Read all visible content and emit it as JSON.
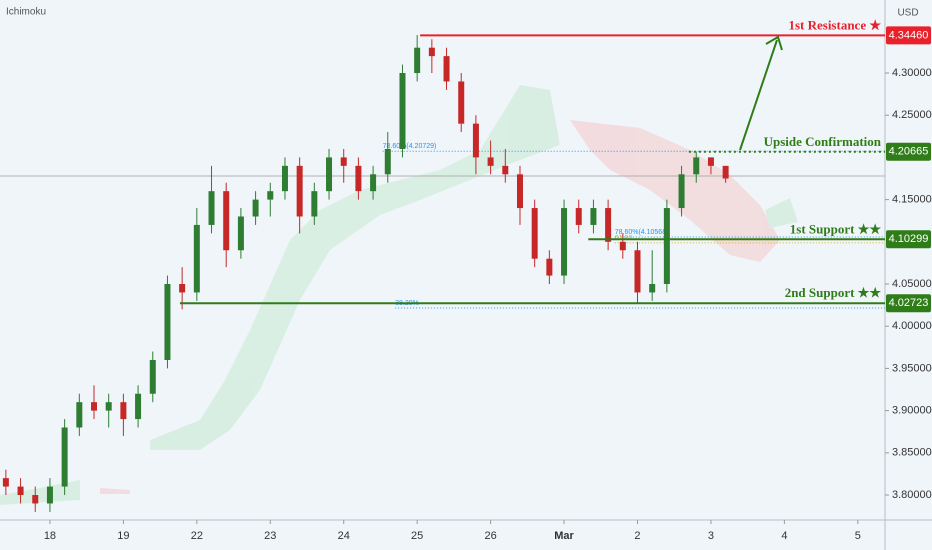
{
  "chart_data": {
    "type": "candlestick",
    "indicator": "Ichimoku",
    "currency": "USD",
    "xlim": [
      -0.68,
      11.37
    ],
    "ylim": [
      3.7704,
      4.3865
    ],
    "xticks": [
      {
        "value": 0,
        "label": "18"
      },
      {
        "value": 1,
        "label": "19"
      },
      {
        "value": 2,
        "label": "22"
      },
      {
        "value": 3,
        "label": "23"
      },
      {
        "value": 4,
        "label": "24"
      },
      {
        "value": 5,
        "label": "25"
      },
      {
        "value": 6,
        "label": "26"
      },
      {
        "value": 7,
        "label": "Mar"
      },
      {
        "value": 8,
        "label": "2"
      },
      {
        "value": 9,
        "label": "3"
      },
      {
        "value": 10,
        "label": "4"
      },
      {
        "value": 11,
        "label": "5"
      }
    ],
    "yticks": [
      {
        "value": 3.8,
        "label": "3.80000"
      },
      {
        "value": 3.85,
        "label": "3.85000"
      },
      {
        "value": 3.9,
        "label": "3.90000"
      },
      {
        "value": 3.95,
        "label": "3.95000"
      },
      {
        "value": 4,
        "label": "4.00000"
      },
      {
        "value": 4.05,
        "label": "4.05000"
      },
      {
        "value": 4.15,
        "label": "4.15000"
      },
      {
        "value": 4.25,
        "label": "4.25000"
      },
      {
        "value": 4.3,
        "label": "4.30000"
      }
    ],
    "up_color": "#2e7d32",
    "down_color": "#c62828",
    "candles": {
      "x": [
        -0.6,
        -0.4,
        -0.2,
        0,
        0.2,
        0.4,
        0.6,
        0.8,
        1,
        1.2,
        1.4,
        1.6,
        1.8,
        2,
        2.2,
        2.4,
        2.6,
        2.8,
        3,
        3.2,
        3.4,
        3.6,
        3.8,
        4,
        4.2,
        4.4,
        4.6,
        4.8,
        5,
        5.2,
        5.4,
        5.6,
        5.8,
        6,
        6.2,
        6.4,
        6.6,
        6.8,
        7,
        7.2,
        7.4,
        7.6,
        7.8,
        8,
        8.2,
        8.4,
        8.6,
        8.8,
        9,
        9.2
      ],
      "open": [
        3.82,
        3.81,
        3.8,
        3.79,
        3.81,
        3.88,
        3.91,
        3.9,
        3.91,
        3.89,
        3.92,
        3.96,
        4.05,
        4.04,
        4.12,
        4.16,
        4.09,
        4.13,
        4.15,
        4.16,
        4.19,
        4.13,
        4.16,
        4.2,
        4.19,
        4.16,
        4.18,
        4.21,
        4.3,
        4.33,
        4.32,
        4.29,
        4.24,
        4.2,
        4.19,
        4.18,
        4.14,
        4.08,
        4.06,
        4.14,
        4.12,
        4.14,
        4.1,
        4.09,
        4.04,
        4.05,
        4.14,
        4.18,
        4.2,
        4.19
      ],
      "high": [
        3.83,
        3.82,
        3.81,
        3.82,
        3.89,
        3.92,
        3.93,
        3.92,
        3.92,
        3.93,
        3.97,
        4.06,
        4.07,
        4.14,
        4.19,
        4.17,
        4.14,
        4.16,
        4.17,
        4.2,
        4.2,
        4.17,
        4.21,
        4.21,
        4.2,
        4.19,
        4.23,
        4.31,
        4.345,
        4.34,
        4.33,
        4.3,
        4.25,
        4.22,
        4.21,
        4.19,
        4.15,
        4.09,
        4.15,
        4.15,
        4.15,
        4.15,
        4.11,
        4.1,
        4.09,
        4.15,
        4.19,
        4.207,
        4.2,
        4.19
      ],
      "low": [
        3.8,
        3.79,
        3.78,
        3.78,
        3.8,
        3.87,
        3.89,
        3.88,
        3.87,
        3.88,
        3.91,
        3.95,
        4.02,
        4.03,
        4.11,
        4.07,
        4.08,
        4.12,
        4.13,
        4.15,
        4.11,
        4.12,
        4.15,
        4.17,
        4.15,
        4.15,
        4.17,
        4.2,
        4.29,
        4.3,
        4.28,
        4.23,
        4.18,
        4.18,
        4.17,
        4.12,
        4.07,
        4.05,
        4.05,
        4.11,
        4.11,
        4.09,
        4.08,
        4.027,
        4.03,
        4.04,
        4.13,
        4.17,
        4.18,
        4.17
      ],
      "close": [
        3.81,
        3.8,
        3.79,
        3.81,
        3.88,
        3.91,
        3.9,
        3.91,
        3.89,
        3.92,
        3.96,
        4.05,
        4.04,
        4.12,
        4.16,
        4.09,
        4.13,
        4.15,
        4.16,
        4.19,
        4.13,
        4.16,
        4.2,
        4.19,
        4.16,
        4.18,
        4.21,
        4.3,
        4.33,
        4.32,
        4.29,
        4.24,
        4.2,
        4.19,
        4.18,
        4.14,
        4.08,
        4.06,
        4.14,
        4.12,
        4.14,
        4.1,
        4.09,
        4.04,
        4.05,
        4.14,
        4.18,
        4.2,
        4.19,
        4.175
      ]
    },
    "last_price_line": 4.178,
    "levels": [
      {
        "label": "1st Resistance ★",
        "value": 4.3446,
        "tag": "4.34460",
        "from": 5.04,
        "color": "#e8212b",
        "style": "solid"
      },
      {
        "label": "Upside Confirmation",
        "value": 4.20665,
        "tag": "4.20665",
        "from": 8.7,
        "color": "#2f7d18",
        "style": "dotted"
      },
      {
        "label": "1st Support ★★",
        "value": 4.10299,
        "tag": "4.10299",
        "from": 7.33,
        "color": "#2f7d18",
        "style": "solid"
      },
      {
        "label": "2nd Support ★★",
        "value": 4.02723,
        "tag": "4.02723",
        "from": 1.77,
        "color": "#2f7d18",
        "style": "solid"
      }
    ],
    "fib_lines": [
      {
        "label": "78.60%(4.20729)",
        "value": 4.20729,
        "from": 4.53,
        "color": "#2196f3"
      },
      {
        "label": "78.60%(4.10568)",
        "value": 4.10568,
        "from": 7.69,
        "color": "#2196f3"
      },
      {
        "label": "61.80",
        "value": 4.0987,
        "from": 7.69,
        "color": "#f0a30a"
      },
      {
        "label": "38.20%",
        "value": 4.0216,
        "from": 4.7,
        "color": "#2196f3"
      }
    ]
  }
}
